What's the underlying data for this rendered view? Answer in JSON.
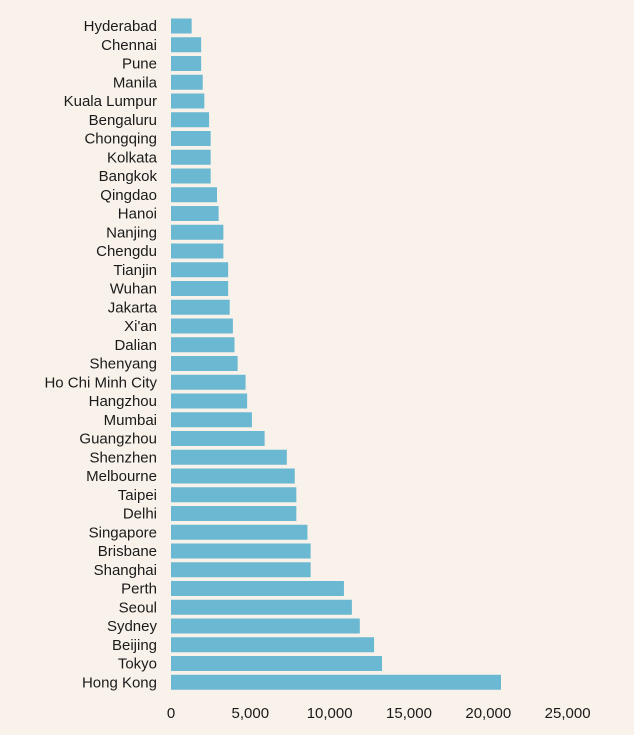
{
  "chart_data": {
    "type": "bar",
    "orientation": "horizontal",
    "title": "",
    "xlabel": "",
    "ylabel": "",
    "xlim": [
      0,
      25000
    ],
    "xticks": [
      0,
      5000,
      10000,
      15000,
      20000,
      25000
    ],
    "xtick_labels": [
      "0",
      "5,000",
      "10,000",
      "15,000",
      "20,000",
      "25,000"
    ],
    "grid": false,
    "bar_color": "#6ab8d1",
    "categories": [
      "Hyderabad",
      "Chennai",
      "Pune",
      "Manila",
      "Kuala Lumpur",
      "Bengaluru",
      "Chongqing",
      "Kolkata",
      "Bangkok",
      "Qingdao",
      "Hanoi",
      "Nanjing",
      "Chengdu",
      "Tianjin",
      "Wuhan",
      "Jakarta",
      "Xi'an",
      "Dalian",
      "Shenyang",
      "Ho Chi Minh City",
      "Hangzhou",
      "Mumbai",
      "Guangzhou",
      "Shenzhen",
      "Melbourne",
      "Taipei",
      "Delhi",
      "Singapore",
      "Brisbane",
      "Shanghai",
      "Perth",
      "Seoul",
      "Sydney",
      "Beijing",
      "Tokyo",
      "Hong Kong"
    ],
    "values": [
      1300,
      1900,
      1900,
      2000,
      2100,
      2400,
      2500,
      2500,
      2500,
      2900,
      3000,
      3300,
      3300,
      3600,
      3600,
      3700,
      3900,
      4000,
      4200,
      4700,
      4800,
      5100,
      5900,
      7300,
      7800,
      7900,
      7900,
      8600,
      8800,
      8800,
      10900,
      11400,
      11900,
      12800,
      13300,
      20800
    ]
  }
}
